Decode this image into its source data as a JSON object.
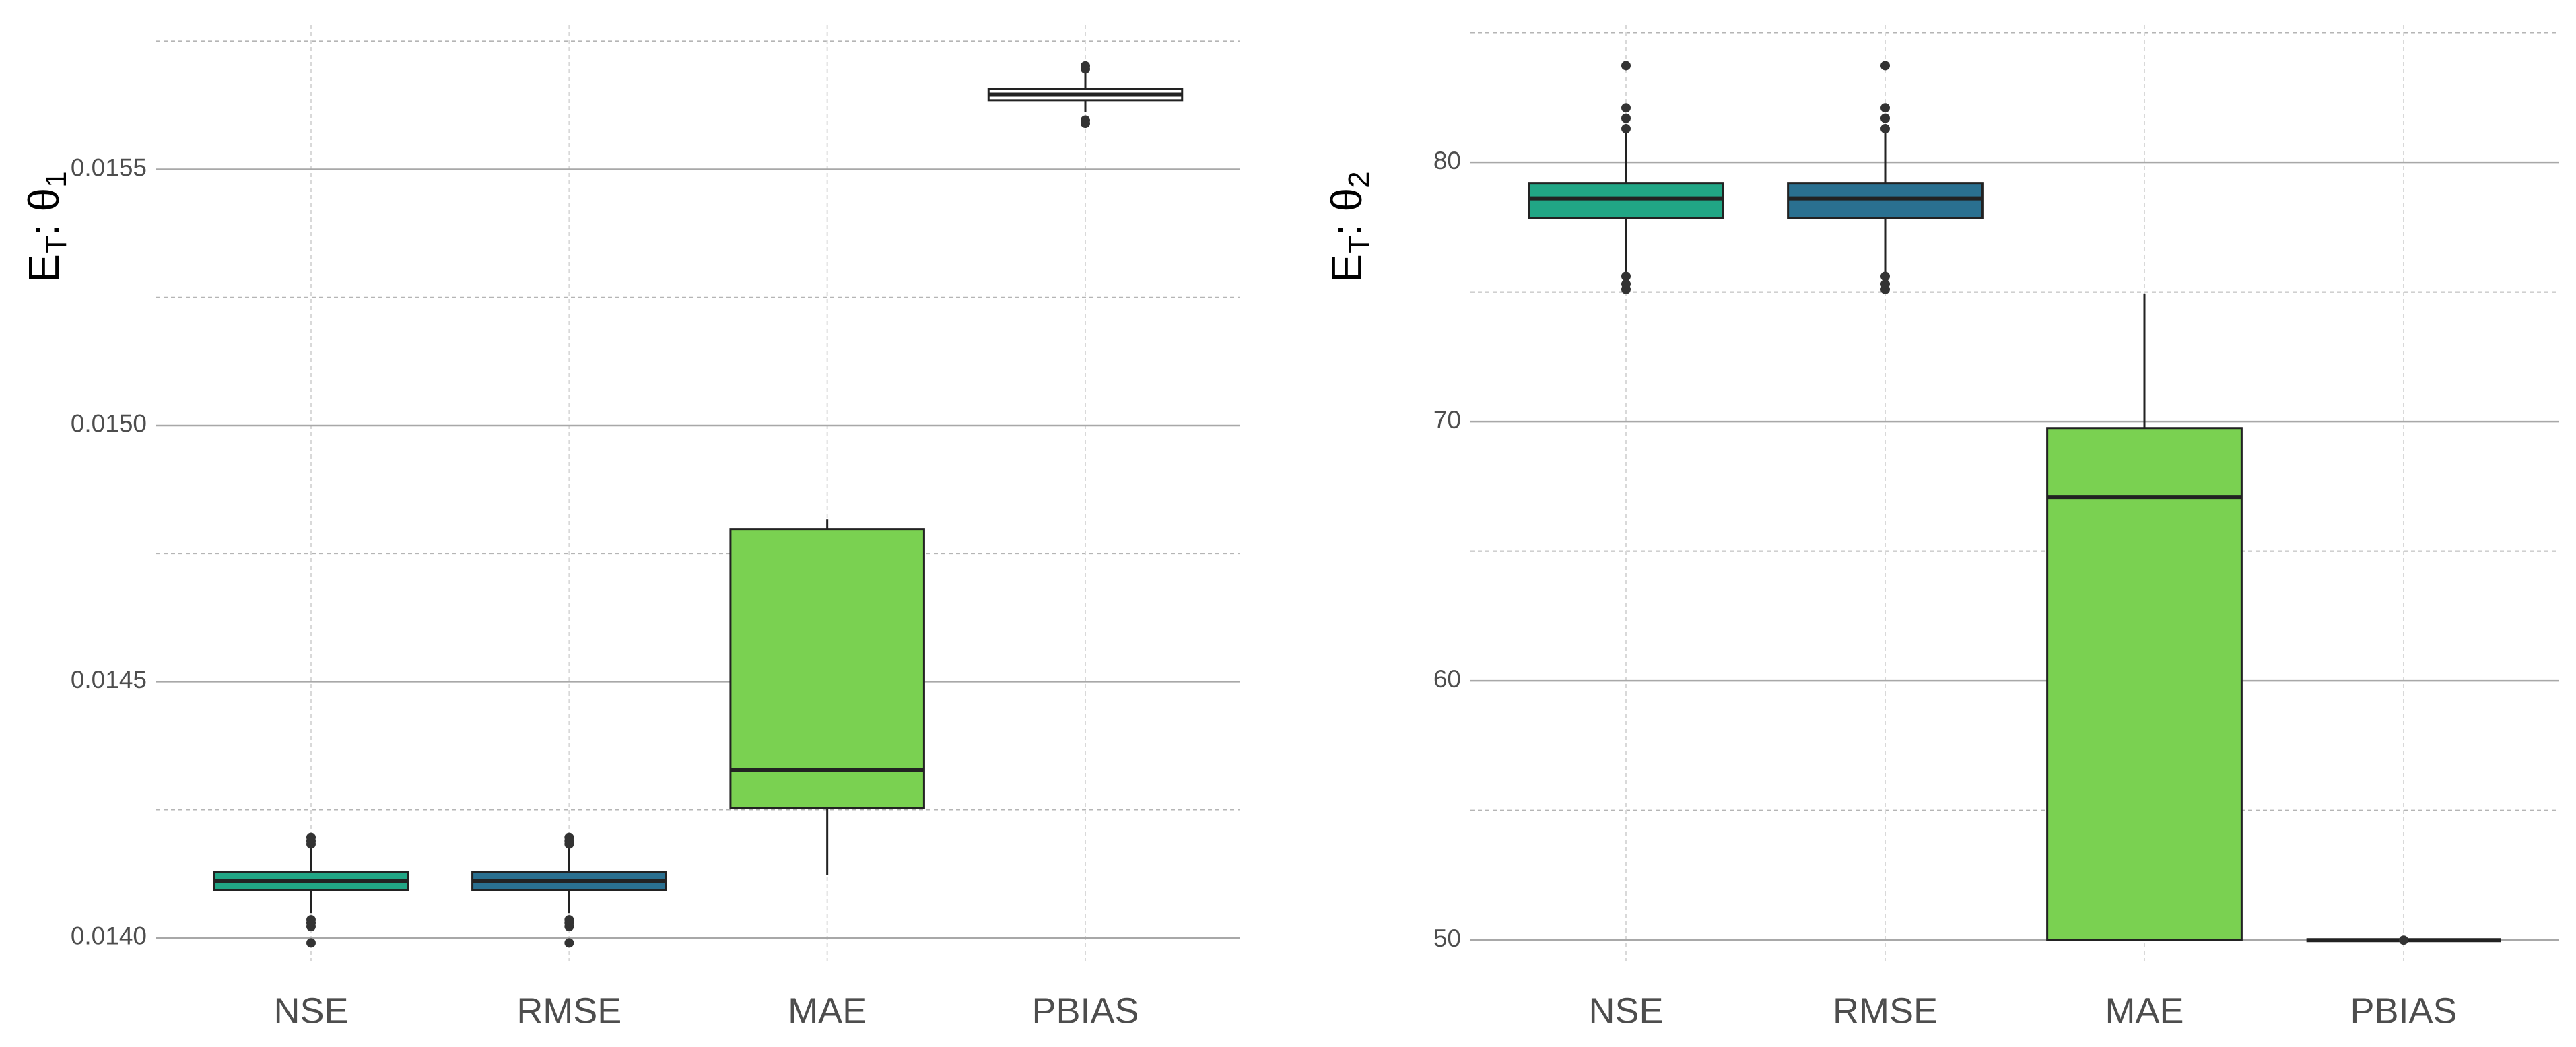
{
  "chart_data": [
    {
      "type": "box",
      "ylabel": {
        "base": "E",
        "sub": "T",
        "sep": ": θ",
        "index": "1"
      },
      "categories": [
        "NSE",
        "RMSE",
        "MAE",
        "PBIAS"
      ],
      "colors": [
        "#21a685",
        "#2a7090",
        "#7ad151",
        "#ffffff"
      ],
      "boxes": [
        {
          "low": 0.014048,
          "q1": 0.014093,
          "median": 0.014111,
          "q3": 0.014128,
          "high": 0.014176,
          "outliers": [
            0.01399,
            0.014022,
            0.014029,
            0.014035,
            0.014183,
            0.014189,
            0.014196
          ]
        },
        {
          "low": 0.014048,
          "q1": 0.014093,
          "median": 0.014111,
          "q3": 0.014128,
          "high": 0.014176,
          "outliers": [
            0.01399,
            0.014022,
            0.014029,
            0.014035,
            0.014183,
            0.014189,
            0.014196
          ]
        },
        {
          "low": 0.014122,
          "q1": 0.014253,
          "median": 0.014327,
          "q3": 0.014798,
          "high": 0.014817,
          "outliers": []
        },
        {
          "low": 0.015612,
          "q1": 0.015635,
          "median": 0.015646,
          "q3": 0.015657,
          "high": 0.015689,
          "outliers": [
            0.01559,
            0.015596,
            0.015696,
            0.015702
          ]
        }
      ],
      "ylim": [
        0.013955,
        0.015782
      ],
      "yticks": [
        {
          "value": 0.014,
          "label": "0.0140"
        },
        {
          "value": 0.0145,
          "label": "0.0145"
        },
        {
          "value": 0.015,
          "label": "0.0150"
        },
        {
          "value": 0.0155,
          "label": "0.0155"
        }
      ],
      "yminor": [
        0.01425,
        0.01475,
        0.01525,
        0.01575
      ],
      "grid": true
    },
    {
      "type": "box",
      "ylabel": {
        "base": "E",
        "sub": "T",
        "sep": ": θ",
        "index": "2"
      },
      "categories": [
        "NSE",
        "RMSE",
        "MAE",
        "PBIAS"
      ],
      "colors": [
        "#21a685",
        "#2a7090",
        "#7ad151",
        "#ffffff"
      ],
      "boxes": [
        {
          "low": 75.76,
          "q1": 77.85,
          "median": 78.61,
          "q3": 79.18,
          "high": 81.2,
          "outliers": [
            75.1,
            75.3,
            75.6,
            81.3,
            81.7,
            82.1,
            83.73
          ]
        },
        {
          "low": 75.76,
          "q1": 77.85,
          "median": 78.61,
          "q3": 79.18,
          "high": 81.2,
          "outliers": [
            75.1,
            75.3,
            75.6,
            81.3,
            81.7,
            82.1,
            83.73
          ]
        },
        {
          "low": 50,
          "q1": 50,
          "median": 67.09,
          "q3": 69.75,
          "high": 74.94,
          "outliers": []
        },
        {
          "low": 50,
          "q1": 50,
          "median": 50,
          "q3": 50,
          "high": 50,
          "outliers": [
            50
          ]
        }
      ],
      "ylim": [
        49.2,
        85.3
      ],
      "yticks": [
        50,
        60,
        70,
        80
      ],
      "yminor": [
        55,
        65,
        75,
        85
      ],
      "grid": true
    }
  ]
}
